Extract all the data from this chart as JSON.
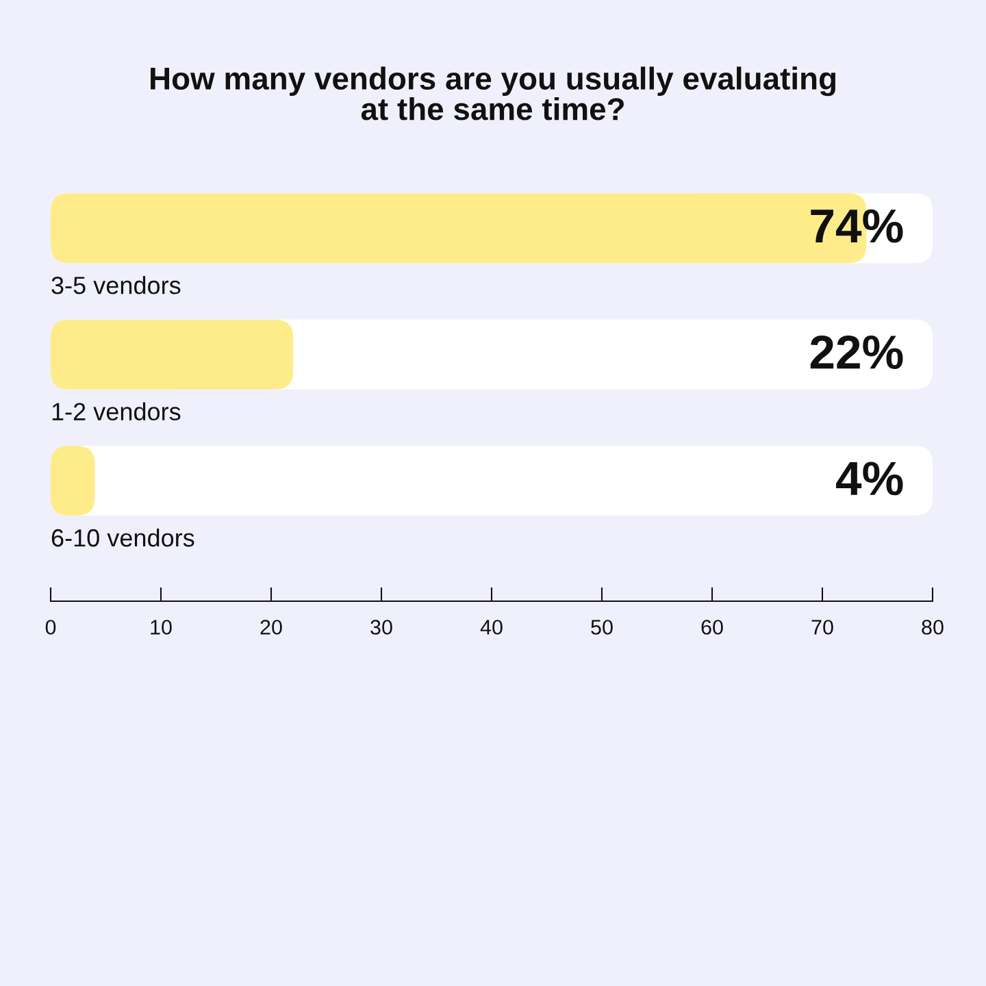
{
  "chart_data": {
    "type": "bar",
    "orientation": "horizontal",
    "title": "How many vendors are you usually evaluating\nat the same time?",
    "categories": [
      "3-5 vendors",
      "1-2 vendors",
      "6-10 vendors"
    ],
    "values": [
      74,
      22,
      4
    ],
    "value_labels": [
      "74%",
      "22%",
      "4%"
    ],
    "color": "#feec8a",
    "xlim": [
      0,
      80
    ],
    "xticks": [
      0,
      10,
      20,
      30,
      40,
      50,
      60,
      70,
      80
    ],
    "grid": false
  }
}
